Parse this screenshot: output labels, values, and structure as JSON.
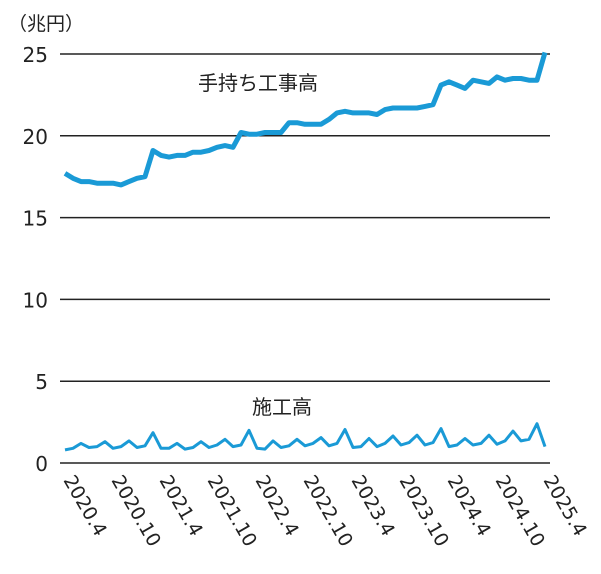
{
  "chart_data": {
    "type": "line",
    "ylabel": "（兆円）",
    "ylim": [
      0,
      25
    ],
    "yticks": [
      0,
      5,
      10,
      15,
      20,
      25
    ],
    "grid": "horizontal",
    "xlabels": [
      "2020.4",
      "2020.10",
      "2021.4",
      "2021.10",
      "2022.4",
      "2022.10",
      "2023.4",
      "2023.10",
      "2024.4",
      "2024.10",
      "2025.4"
    ],
    "x_start": "2020.4",
    "x_end": "2025.4",
    "frequency": "monthly",
    "line_color": "#1a9ad6",
    "series": [
      {
        "name": "手持ち工事高",
        "values": [
          17.7,
          17.4,
          17.2,
          17.2,
          17.1,
          17.1,
          17.1,
          17.0,
          17.2,
          17.4,
          17.5,
          19.1,
          18.8,
          18.7,
          18.8,
          18.8,
          19.0,
          19.0,
          19.1,
          19.3,
          19.4,
          19.3,
          20.2,
          20.1,
          20.1,
          20.2,
          20.2,
          20.2,
          20.8,
          20.8,
          20.7,
          20.7,
          20.7,
          21.0,
          21.4,
          21.5,
          21.4,
          21.4,
          21.4,
          21.3,
          21.6,
          21.7,
          21.7,
          21.7,
          21.7,
          21.8,
          21.9,
          23.1,
          23.3,
          23.1,
          22.9,
          23.4,
          23.3,
          23.2,
          23.6,
          23.4,
          23.5,
          23.5,
          23.4,
          23.4,
          25.1
        ]
      },
      {
        "name": "施工高",
        "values": [
          0.8,
          0.9,
          1.2,
          0.95,
          1.0,
          1.3,
          0.9,
          1.0,
          1.35,
          0.95,
          1.05,
          1.85,
          0.9,
          0.9,
          1.2,
          0.85,
          0.95,
          1.3,
          0.95,
          1.1,
          1.45,
          1.0,
          1.1,
          2.0,
          0.9,
          0.85,
          1.35,
          0.95,
          1.05,
          1.45,
          1.05,
          1.2,
          1.55,
          1.05,
          1.2,
          2.05,
          0.95,
          1.0,
          1.5,
          1.0,
          1.2,
          1.65,
          1.1,
          1.25,
          1.7,
          1.1,
          1.25,
          2.1,
          1.0,
          1.1,
          1.5,
          1.1,
          1.2,
          1.7,
          1.15,
          1.35,
          1.95,
          1.35,
          1.45,
          2.4,
          1.0
        ]
      }
    ]
  }
}
